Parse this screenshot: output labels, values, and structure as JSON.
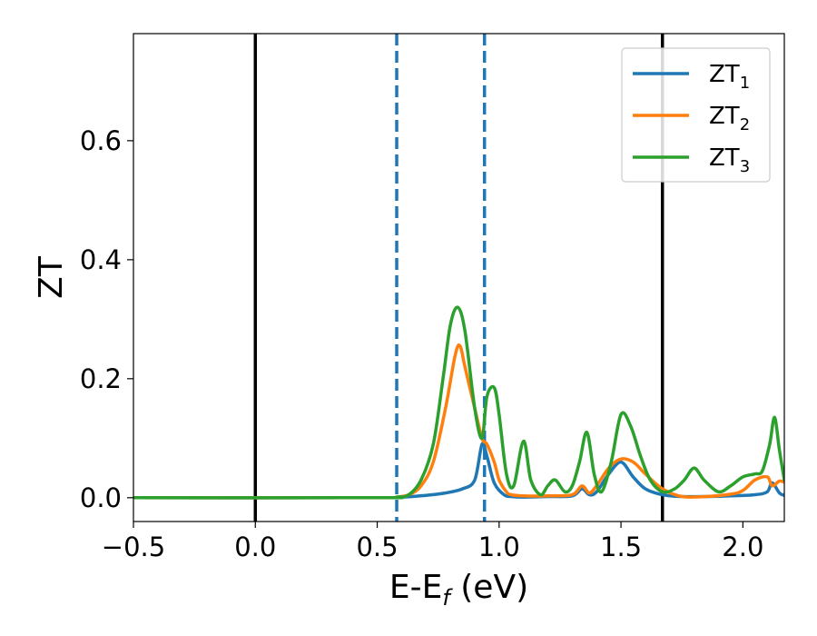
{
  "chart_data": {
    "type": "line",
    "xlabel": "E-E",
    "xlabel_sub": "f",
    "xlabel_unit": " (eV)",
    "ylabel": "ZT",
    "xlim": [
      -0.5,
      2.17
    ],
    "ylim": [
      -0.04,
      0.78
    ],
    "xticks": [
      -0.5,
      0.0,
      0.5,
      1.0,
      1.5,
      2.0
    ],
    "xtick_labels": [
      "−0.5",
      "0.0",
      "0.5",
      "1.0",
      "1.5",
      "2.0"
    ],
    "yticks": [
      0.0,
      0.2,
      0.4,
      0.6
    ],
    "ytick_labels": [
      "0.0",
      "0.2",
      "0.4",
      "0.6"
    ],
    "grid": false,
    "legend_position": "top-right",
    "vlines": [
      {
        "x": 0.0,
        "style": "solid",
        "color": "#000000"
      },
      {
        "x": 1.67,
        "style": "solid",
        "color": "#000000"
      },
      {
        "x": 0.58,
        "style": "dashed",
        "color": "#1f77b4"
      },
      {
        "x": 0.94,
        "style": "dashed",
        "color": "#1f77b4"
      }
    ],
    "series": [
      {
        "name": "ZT",
        "sub": "1",
        "color": "#1f77b4",
        "x": [
          -0.5,
          0.5,
          0.6,
          0.7,
          0.78,
          0.85,
          0.9,
          0.93,
          0.95,
          0.98,
          1.02,
          1.05,
          1.1,
          1.2,
          1.3,
          1.34,
          1.37,
          1.4,
          1.45,
          1.5,
          1.55,
          1.6,
          1.67,
          1.75,
          1.85,
          1.95,
          2.05,
          2.1,
          2.12,
          2.15,
          2.17
        ],
        "y": [
          0.0,
          0.0,
          0.001,
          0.004,
          0.008,
          0.015,
          0.03,
          0.09,
          0.07,
          0.025,
          0.005,
          0.002,
          0.001,
          0.002,
          0.003,
          0.015,
          0.005,
          0.01,
          0.04,
          0.06,
          0.035,
          0.015,
          0.005,
          0.002,
          0.002,
          0.003,
          0.005,
          0.01,
          0.025,
          0.008,
          0.004
        ]
      },
      {
        "name": "ZT",
        "sub": "2",
        "color": "#ff7f0e",
        "x": [
          -0.5,
          0.5,
          0.58,
          0.63,
          0.68,
          0.73,
          0.78,
          0.82,
          0.84,
          0.86,
          0.9,
          0.93,
          0.95,
          0.98,
          1.0,
          1.03,
          1.05,
          1.1,
          1.2,
          1.3,
          1.34,
          1.37,
          1.4,
          1.45,
          1.5,
          1.55,
          1.6,
          1.67,
          1.75,
          1.85,
          1.95,
          2.0,
          2.05,
          2.1,
          2.12,
          2.15,
          2.17
        ],
        "y": [
          0.0,
          0.0,
          0.001,
          0.005,
          0.02,
          0.06,
          0.15,
          0.24,
          0.255,
          0.22,
          0.15,
          0.1,
          0.09,
          0.06,
          0.03,
          0.01,
          0.005,
          0.003,
          0.003,
          0.005,
          0.02,
          0.008,
          0.02,
          0.05,
          0.065,
          0.06,
          0.04,
          0.015,
          0.002,
          0.002,
          0.006,
          0.012,
          0.03,
          0.035,
          0.02,
          0.028,
          0.026
        ]
      },
      {
        "name": "ZT",
        "sub": "3",
        "color": "#2ca02c",
        "x": [
          -0.5,
          0.5,
          0.58,
          0.63,
          0.68,
          0.73,
          0.77,
          0.8,
          0.83,
          0.86,
          0.9,
          0.93,
          0.95,
          0.98,
          1.0,
          1.03,
          1.06,
          1.1,
          1.13,
          1.17,
          1.2,
          1.23,
          1.27,
          1.3,
          1.33,
          1.36,
          1.39,
          1.42,
          1.46,
          1.5,
          1.54,
          1.58,
          1.62,
          1.67,
          1.72,
          1.76,
          1.8,
          1.84,
          1.9,
          1.95,
          2.0,
          2.05,
          2.08,
          2.11,
          2.13,
          2.15,
          2.17
        ],
        "y": [
          0.0,
          0.0,
          0.001,
          0.005,
          0.03,
          0.09,
          0.2,
          0.29,
          0.32,
          0.28,
          0.15,
          0.1,
          0.17,
          0.185,
          0.14,
          0.04,
          0.02,
          0.095,
          0.03,
          0.005,
          0.02,
          0.03,
          0.01,
          0.02,
          0.06,
          0.11,
          0.04,
          0.01,
          0.06,
          0.14,
          0.12,
          0.07,
          0.03,
          0.01,
          0.015,
          0.03,
          0.05,
          0.03,
          0.01,
          0.02,
          0.035,
          0.04,
          0.045,
          0.09,
          0.135,
          0.08,
          0.03
        ]
      }
    ]
  }
}
